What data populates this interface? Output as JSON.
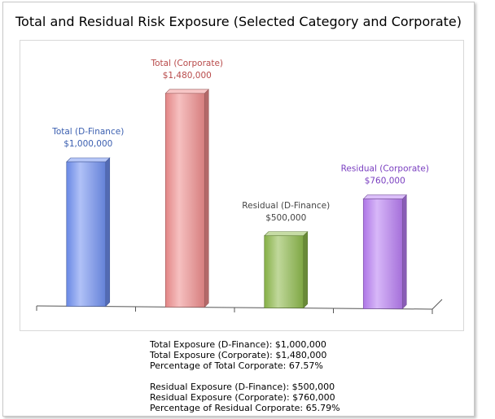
{
  "chart_data": {
    "type": "bar",
    "title": "Total and Residual Risk Exposure (Selected Category and Corporate)",
    "categories": [
      "Total (D-Finance)",
      "Total (Corporate)",
      "Residual (D-Finance)",
      "Residual (Corporate)"
    ],
    "values": [
      1000000,
      1480000,
      500000,
      760000
    ],
    "value_labels": [
      "$1,000,000",
      "$1,480,000",
      "$500,000",
      "$760,000"
    ],
    "colors": [
      "#6f8ff0",
      "#ee8c8c",
      "#8cb84a",
      "#b77cf2"
    ],
    "label_colors": [
      "#3b5fb0",
      "#b84a4a",
      "#444444",
      "#7a3fc0"
    ],
    "xlabel": "",
    "ylabel": "",
    "ylim": [
      0,
      1600000
    ],
    "grid": false,
    "legend": "none"
  },
  "summary": {
    "total_d_finance": "Total Exposure (D-Finance): $1,000,000",
    "total_corporate": "Total Exposure (Corporate): $1,480,000",
    "pct_total": "Percentage of Total Corporate: 67.57%",
    "residual_d_finance": "Residual Exposure (D-Finance): $500,000",
    "residual_corporate": "Residual Exposure (Corporate): $760,000",
    "pct_residual": "Percentage of Residual Corporate: 65.79%"
  }
}
